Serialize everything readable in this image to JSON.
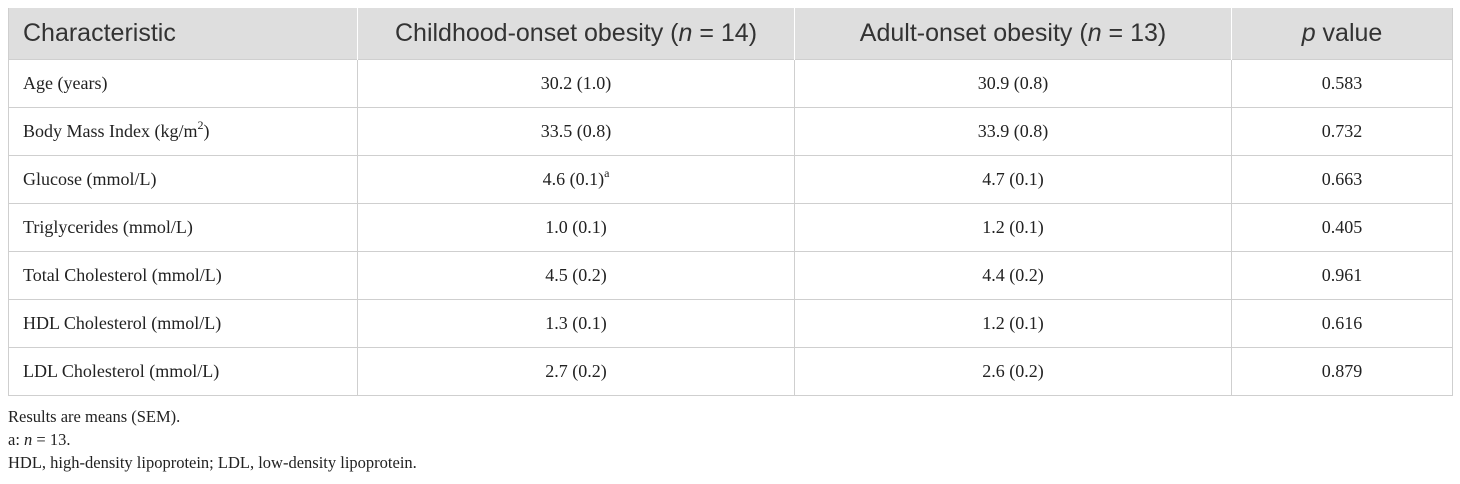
{
  "table": {
    "headers": {
      "characteristic": "Characteristic",
      "child_prefix": "Childhood-onset obesity (",
      "child_n": "n",
      "child_suffix": " = 14)",
      "adult_prefix": "Adult-onset obesity (",
      "adult_n": "n",
      "adult_suffix": " = 13)",
      "p_italic": "p",
      "p_suffix": " value"
    },
    "rows": [
      {
        "label": "Age (years)",
        "child": "30.2 (1.0)",
        "adult": "30.9 (0.8)",
        "p": "0.583"
      },
      {
        "label_prefix": "Body Mass Index (kg/m",
        "label_sup": "2",
        "label_suffix": ")",
        "child": "33.5 (0.8)",
        "adult": "33.9 (0.8)",
        "p": "0.732"
      },
      {
        "label": "Glucose (mmol/L)",
        "child": "4.6 (0.1)",
        "child_sup": "a",
        "adult": "4.7 (0.1)",
        "p": "0.663"
      },
      {
        "label": "Triglycerides (mmol/L)",
        "child": "1.0 (0.1)",
        "adult": "1.2 (0.1)",
        "p": "0.405"
      },
      {
        "label": "Total Cholesterol (mmol/L)",
        "child": "4.5 (0.2)",
        "adult": "4.4 (0.2)",
        "p": "0.961"
      },
      {
        "label": "HDL Cholesterol (mmol/L)",
        "child": "1.3 (0.1)",
        "adult": "1.2 (0.1)",
        "p": "0.616"
      },
      {
        "label": "LDL Cholesterol (mmol/L)",
        "child": "2.7 (0.2)",
        "adult": "2.6 (0.2)",
        "p": "0.879"
      }
    ]
  },
  "footnotes": {
    "results": "Results are means (SEM).",
    "a_prefix": "a: ",
    "a_n": "n",
    "a_suffix": " = 13.",
    "abbreviations": "HDL, high-density lipoprotein; LDL, low-density lipoprotein."
  }
}
